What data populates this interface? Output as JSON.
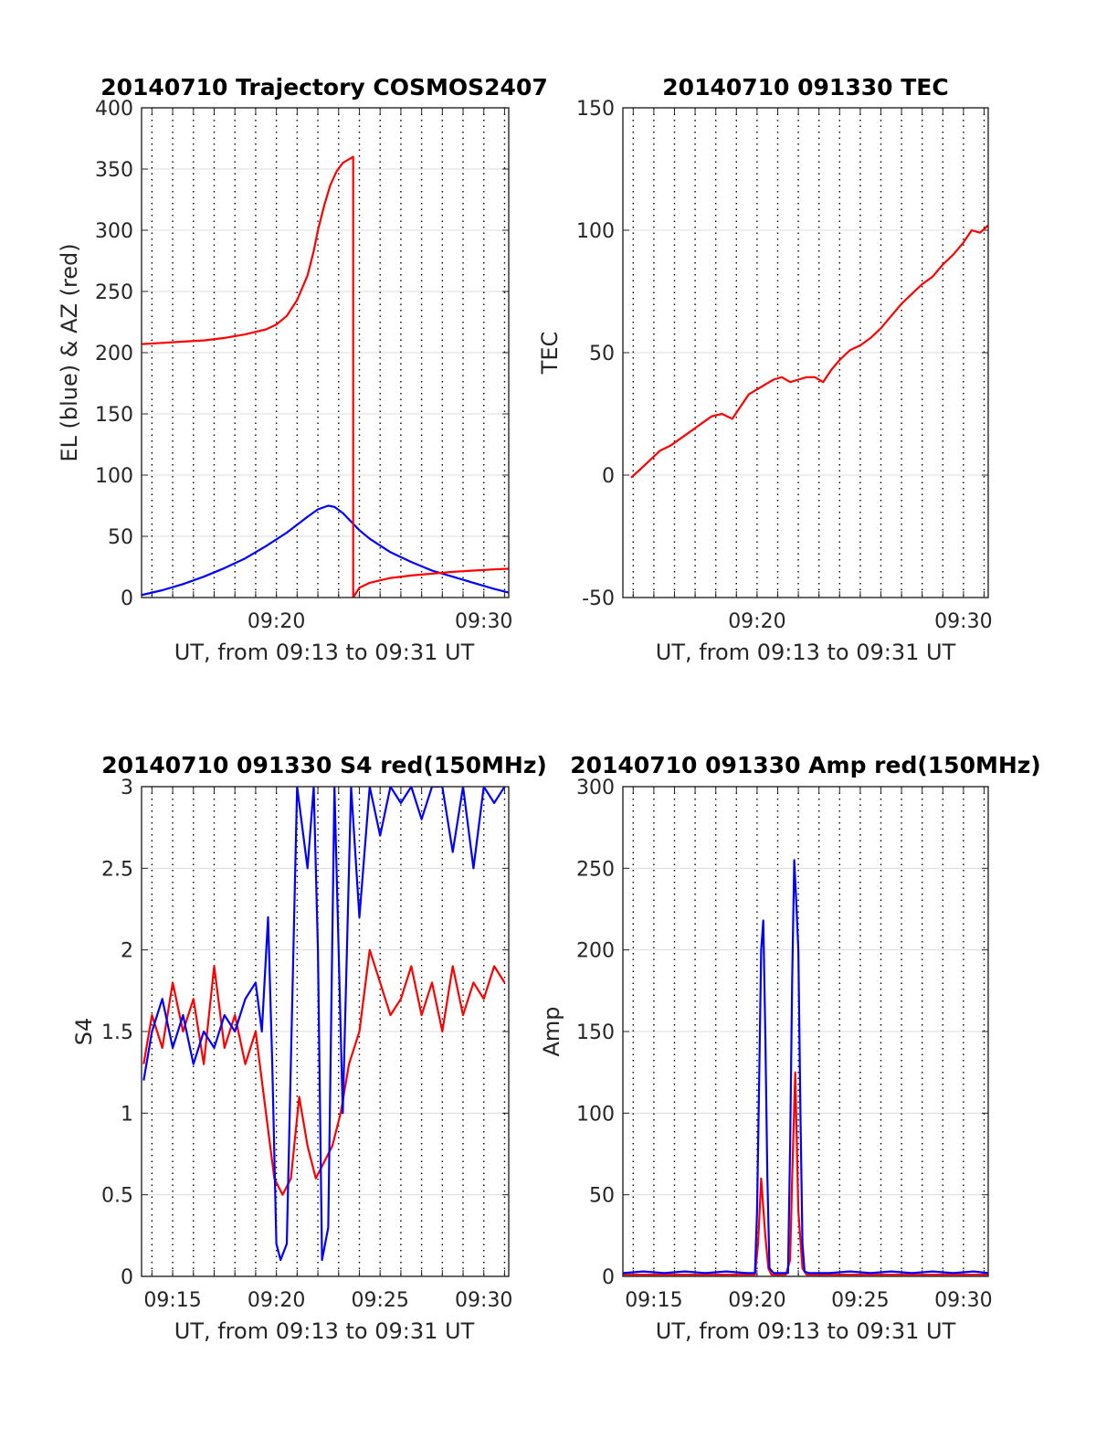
{
  "figure": {
    "background": "#ffffff",
    "grid_color": "#000000",
    "colors": {
      "red": "#ff0000",
      "blue": "#0000ff"
    }
  },
  "chart_data": [
    {
      "type": "line",
      "title": "20140710 Trajectory COSMOS2407",
      "xlabel": "UT, from 09:13 to 09:31 UT",
      "ylabel": "EL (blue) & AZ (red)",
      "xlim": [
        13.5,
        31.2
      ],
      "ylim": [
        0,
        400
      ],
      "yticks": [
        0,
        50,
        100,
        150,
        200,
        250,
        300,
        350,
        400
      ],
      "ytick_labels": [
        "0",
        "50",
        "100",
        "150",
        "200",
        "250",
        "300",
        "350",
        "400"
      ],
      "xticks": [
        20,
        30
      ],
      "xtick_labels": [
        "09:20",
        "09:30"
      ],
      "vertical_grid_minutes": [
        14,
        15,
        16,
        17,
        18,
        19,
        20,
        21,
        22,
        23,
        24,
        25,
        26,
        27,
        28,
        29,
        30,
        31
      ],
      "grid": "dotted vertical at every minute, light horizontal at y ticks",
      "series": [
        {
          "color": "#0000ff",
          "x": [
            13.5,
            14.5,
            15.5,
            16.5,
            17.5,
            18.5,
            19.5,
            20.5,
            21.5,
            22.0,
            22.5,
            22.8,
            23.2,
            23.6,
            24.0,
            24.5,
            25.5,
            26.5,
            27.5,
            28.5,
            29.5,
            30.5,
            31.2
          ],
          "values": [
            2,
            6,
            11,
            17,
            24,
            32,
            42,
            53,
            66,
            72,
            75,
            74,
            69,
            62,
            55,
            48,
            37,
            29,
            22,
            17,
            12,
            7,
            4
          ]
        },
        {
          "color": "#ff0000",
          "x": [
            13.5,
            14.5,
            15.5,
            16.5,
            17.5,
            18.5,
            19.5,
            20.0,
            20.5,
            21.0,
            21.5,
            21.8,
            22.0,
            22.3,
            22.6,
            22.9,
            23.2,
            23.5,
            23.7,
            23.7,
            24.0,
            24.5,
            25.0,
            25.5,
            26.5,
            27.5,
            28.5,
            29.5,
            30.5,
            31.2
          ],
          "values": [
            207,
            208,
            209,
            210,
            212,
            215,
            219,
            223,
            230,
            243,
            263,
            283,
            300,
            320,
            337,
            348,
            355,
            358,
            360,
            0,
            8,
            12,
            14,
            16,
            18,
            19.5,
            21,
            22,
            23,
            23.5
          ]
        }
      ]
    },
    {
      "type": "line",
      "title": "20140710 091330 TEC",
      "xlabel": "UT, from 09:13 to 09:31 UT",
      "ylabel": "TEC",
      "xlim": [
        13.5,
        31.2
      ],
      "ylim": [
        -50,
        150
      ],
      "yticks": [
        -50,
        0,
        50,
        100,
        150
      ],
      "ytick_labels": [
        "-50",
        "0",
        "50",
        "100",
        "150"
      ],
      "xticks": [
        20,
        30
      ],
      "xtick_labels": [
        "09:20",
        "09:30"
      ],
      "vertical_grid_minutes": [
        14,
        15,
        16,
        17,
        18,
        19,
        20,
        21,
        22,
        23,
        24,
        25,
        26,
        27,
        28,
        29,
        30,
        31
      ],
      "grid": "dotted vertical at every minute, light horizontal at y ticks",
      "series": [
        {
          "color": "#ff0000",
          "x": [
            13.9,
            14.3,
            14.8,
            15.3,
            15.8,
            16.3,
            16.8,
            17.3,
            17.8,
            18.3,
            18.8,
            19.2,
            19.6,
            20.0,
            20.4,
            20.8,
            21.2,
            21.6,
            22.0,
            22.4,
            22.8,
            23.2,
            23.6,
            24.0,
            24.5,
            25.0,
            25.5,
            26.0,
            26.5,
            27.0,
            27.5,
            28.0,
            28.5,
            29.0,
            29.5,
            30.0,
            30.4,
            30.8,
            31.2
          ],
          "values": [
            -1,
            2,
            6,
            10,
            12,
            15,
            18,
            21,
            24,
            25,
            23,
            28,
            33,
            35,
            37,
            39,
            40,
            38,
            39,
            40,
            40,
            38,
            43,
            47,
            51,
            53,
            56,
            60,
            65,
            70,
            74,
            78,
            81,
            86,
            90,
            95,
            100,
            99,
            102
          ]
        }
      ]
    },
    {
      "type": "line",
      "title": "20140710 091330 S4 red(150MHz)",
      "xlabel": "UT, from 09:13 to 09:31 UT",
      "ylabel": "S4",
      "xlim": [
        13.5,
        31.2
      ],
      "ylim": [
        0,
        3
      ],
      "yticks": [
        0,
        0.5,
        1,
        1.5,
        2,
        2.5,
        3
      ],
      "ytick_labels": [
        "0",
        "0.5",
        "1",
        "1.5",
        "2",
        "2.5",
        "3"
      ],
      "xticks": [
        15,
        20,
        25,
        30
      ],
      "xtick_labels": [
        "09:15",
        "09:20",
        "09:25",
        "09:30"
      ],
      "vertical_grid_minutes": [
        14,
        15,
        16,
        17,
        18,
        19,
        20,
        21,
        22,
        23,
        24,
        25,
        26,
        27,
        28,
        29,
        30,
        31
      ],
      "grid": "dotted vertical at every minute, light horizontal at y ticks",
      "series": [
        {
          "color": "#ff0000",
          "x": [
            13.6,
            14.0,
            14.5,
            15.0,
            15.5,
            16.0,
            16.5,
            17.0,
            17.5,
            18.0,
            18.5,
            19.0,
            19.3,
            19.6,
            19.9,
            20.3,
            20.7,
            21.1,
            21.5,
            21.9,
            22.3,
            22.7,
            23.1,
            23.5,
            24.0,
            24.5,
            25.0,
            25.5,
            26.0,
            26.5,
            27.0,
            27.5,
            28.0,
            28.5,
            29.0,
            29.5,
            30.0,
            30.5,
            31.0
          ],
          "values": [
            1.3,
            1.6,
            1.4,
            1.8,
            1.5,
            1.7,
            1.3,
            1.9,
            1.4,
            1.6,
            1.3,
            1.5,
            1.2,
            0.9,
            0.6,
            0.5,
            0.6,
            1.1,
            0.8,
            0.6,
            0.7,
            0.8,
            1.0,
            1.3,
            1.5,
            2.0,
            1.8,
            1.6,
            1.7,
            1.9,
            1.6,
            1.8,
            1.5,
            1.9,
            1.6,
            1.8,
            1.7,
            1.9,
            1.8
          ]
        },
        {
          "color": "#0000ff",
          "x": [
            13.6,
            14.0,
            14.5,
            15.0,
            15.5,
            16.0,
            16.5,
            17.0,
            17.5,
            18.0,
            18.5,
            19.0,
            19.3,
            19.6,
            19.8,
            20.0,
            20.2,
            20.5,
            21.0,
            21.5,
            21.8,
            22.0,
            22.2,
            22.5,
            22.8,
            23.2,
            23.6,
            24.0,
            24.5,
            25.0,
            25.5,
            26.0,
            26.5,
            27.0,
            27.5,
            28.0,
            28.5,
            29.0,
            29.5,
            30.0,
            30.5,
            31.0
          ],
          "values": [
            1.2,
            1.5,
            1.7,
            1.4,
            1.6,
            1.3,
            1.5,
            1.4,
            1.6,
            1.5,
            1.7,
            1.8,
            1.5,
            2.2,
            1.3,
            0.2,
            0.1,
            0.2,
            3.0,
            2.5,
            3.0,
            2.0,
            0.1,
            0.3,
            3.0,
            1.0,
            3.0,
            2.2,
            3.0,
            2.7,
            3.0,
            2.9,
            3.0,
            2.8,
            3.0,
            3.0,
            2.6,
            3.0,
            2.5,
            3.0,
            2.9,
            3.0
          ]
        }
      ]
    },
    {
      "type": "line",
      "title": "20140710 091330 Amp red(150MHz)",
      "xlabel": "UT, from 09:13 to 09:31 UT",
      "ylabel": "Amp",
      "xlim": [
        13.5,
        31.2
      ],
      "ylim": [
        0,
        300
      ],
      "yticks": [
        0,
        50,
        100,
        150,
        200,
        250,
        300
      ],
      "ytick_labels": [
        "0",
        "50",
        "100",
        "150",
        "200",
        "250",
        "300"
      ],
      "xticks": [
        15,
        20,
        25,
        30
      ],
      "xtick_labels": [
        "09:15",
        "09:20",
        "09:25",
        "09:30"
      ],
      "vertical_grid_minutes": [
        14,
        15,
        16,
        17,
        18,
        19,
        20,
        21,
        22,
        23,
        24,
        25,
        26,
        27,
        28,
        29,
        30,
        31
      ],
      "grid": "dotted vertical at every minute, light horizontal at y ticks",
      "series": [
        {
          "color": "#ff0000",
          "x": [
            13.5,
            19.9,
            20.05,
            20.2,
            20.4,
            20.55,
            20.7,
            21.0,
            21.4,
            21.6,
            21.7,
            21.85,
            22.0,
            22.2,
            22.4,
            31.2
          ],
          "values": [
            1,
            1,
            20,
            60,
            25,
            5,
            1,
            1,
            1,
            10,
            60,
            125,
            40,
            5,
            1,
            1
          ]
        },
        {
          "color": "#0000ff",
          "x": [
            13.5,
            14.5,
            15.5,
            16.5,
            17.5,
            18.5,
            19.5,
            19.9,
            20.0,
            20.1,
            20.2,
            20.3,
            20.4,
            20.5,
            20.6,
            20.8,
            21.2,
            21.5,
            21.6,
            21.7,
            21.8,
            21.9,
            22.0,
            22.1,
            22.2,
            22.3,
            22.5,
            23.5,
            24.5,
            25.5,
            26.5,
            27.5,
            28.5,
            29.5,
            30.5,
            31.2
          ],
          "values": [
            2,
            3,
            2,
            3,
            2,
            3,
            2,
            2,
            40,
            120,
            200,
            218,
            150,
            60,
            5,
            2,
            2,
            2,
            80,
            180,
            255,
            230,
            200,
            100,
            20,
            3,
            2,
            2,
            3,
            2,
            3,
            2,
            3,
            2,
            3,
            2
          ]
        }
      ]
    }
  ]
}
